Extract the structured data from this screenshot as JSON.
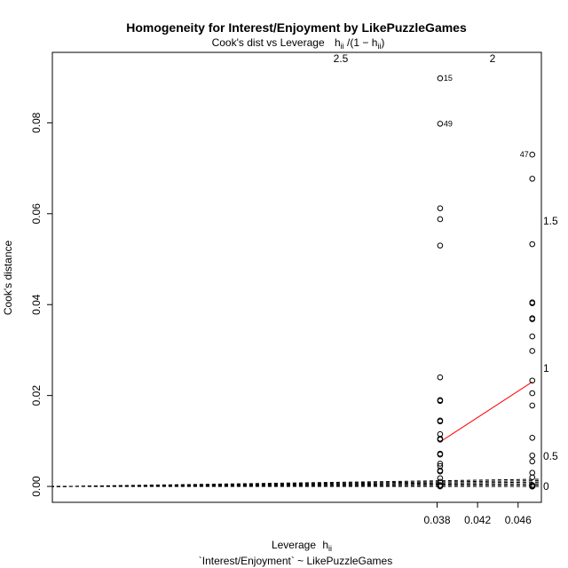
{
  "chart_data": {
    "type": "scatter",
    "title": "Homogeneity for Interest/Enjoyment by LikePuzzleGames",
    "subtitle": "Cook's dist vs Leverage  h_ii / (1 − h_ii)",
    "subtitle_parts": {
      "prefix": "Cook's dist vs Leverage",
      "h": "h",
      "ii": "ii",
      "div_open": "/(1 −",
      "close": ")"
    },
    "xlabel_parts": {
      "text": "Leverage",
      "h": "h",
      "ii": "ii"
    },
    "caption": "`Interest/Enjoyment` ~ LikePuzzleGames",
    "ylabel": "Cook's distance",
    "xlim": [
      0.0,
      0.0483
    ],
    "ylim": [
      -0.0035,
      0.0955
    ],
    "x_ticks": [
      0.038,
      0.042,
      0.046
    ],
    "x_tick_labels": [
      "0.038",
      "0.042",
      "0.046"
    ],
    "y_ticks": [
      0.0,
      0.02,
      0.04,
      0.06,
      0.08
    ],
    "y_tick_labels": [
      "0.00",
      "0.02",
      "0.04",
      "0.06",
      "0.08"
    ],
    "contour_labels": [
      "2.5",
      "2",
      "1.5",
      "1",
      "0.5",
      "0"
    ],
    "contour_ratios": [
      2.5,
      2,
      1.5,
      1,
      0.5,
      0
    ],
    "contour_origin": [
      0.00145,
      0.0
    ],
    "contour_color": "#000000",
    "smooth_color": "#ff0000",
    "smooth_line": {
      "x": [
        0.0383,
        0.0474
      ],
      "y": [
        0.0098,
        0.023
      ]
    },
    "series": [
      {
        "x": [
          0.0383,
          0.0383,
          0.0383,
          0.0383,
          0.0383,
          0.0383,
          0.0383,
          0.0383,
          0.0383,
          0.0383,
          0.0383,
          0.0383,
          0.0383,
          0.0383,
          0.0383,
          0.0383,
          0.0383,
          0.0383,
          0.0383,
          0.0383,
          0.0383,
          0.0383,
          0.0383,
          0.0383
        ],
        "y": [
          0.0898,
          0.0798,
          0.0612,
          0.0588,
          0.053,
          0.024,
          0.019,
          0.0188,
          0.0145,
          0.0143,
          0.0115,
          0.0105,
          0.0103,
          0.0072,
          0.007,
          0.005,
          0.0045,
          0.0035,
          0.0033,
          0.0018,
          0.001,
          0.0003,
          0.0001,
          0.0
        ]
      },
      {
        "x": [
          0.0474,
          0.0474,
          0.0474,
          0.0474,
          0.0474,
          0.0474,
          0.0474,
          0.0474,
          0.0474,
          0.0474,
          0.0474,
          0.0474,
          0.0474,
          0.0474,
          0.0474,
          0.0474,
          0.0474,
          0.0474,
          0.0474,
          0.0474,
          0.0474,
          0.0474
        ],
        "y": [
          0.073,
          0.0677,
          0.0533,
          0.0405,
          0.0403,
          0.037,
          0.0368,
          0.033,
          0.0298,
          0.0233,
          0.0205,
          0.0178,
          0.0107,
          0.0068,
          0.0055,
          0.003,
          0.002,
          0.0003,
          0.0001,
          0.0,
          0.0,
          0.0
        ]
      }
    ],
    "point_labels": [
      {
        "text": "15",
        "x": 0.0383,
        "y": 0.0898,
        "side": "right"
      },
      {
        "text": "49",
        "x": 0.0383,
        "y": 0.0798,
        "side": "right"
      },
      {
        "text": "47",
        "x": 0.0474,
        "y": 0.073,
        "side": "left"
      }
    ],
    "grid": false,
    "legend": "none"
  }
}
